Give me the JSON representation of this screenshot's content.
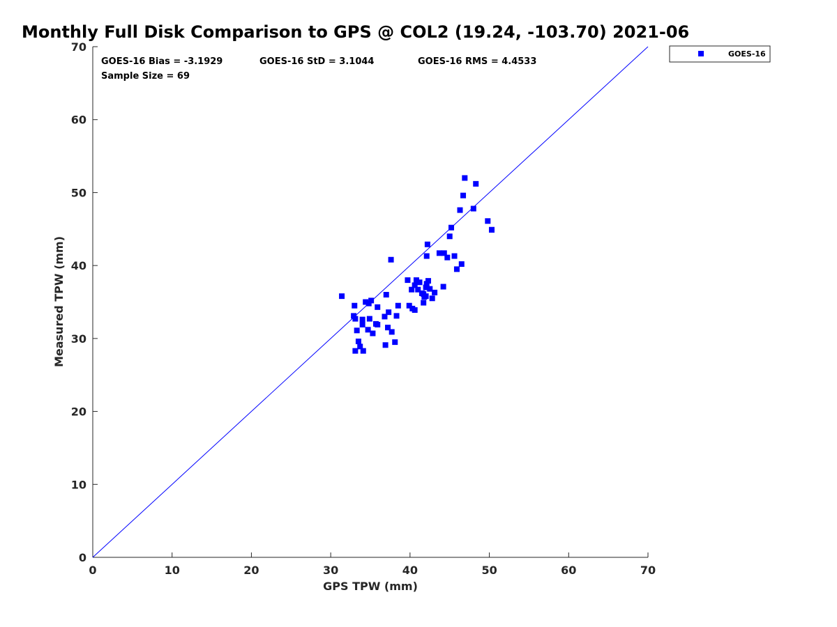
{
  "chart_data": {
    "type": "scatter",
    "title": "Monthly Full Disk Comparison to GPS @ COL2 (19.24, -103.70) 2021-06",
    "xlabel": "GPS TPW (mm)",
    "ylabel": "Measured TPW (mm)",
    "xlim": [
      0,
      70
    ],
    "ylim": [
      0,
      70
    ],
    "xticks": [
      "0",
      "10",
      "20",
      "30",
      "40",
      "50",
      "60",
      "70"
    ],
    "yticks": [
      "0",
      "10",
      "20",
      "30",
      "40",
      "50",
      "60",
      "70"
    ],
    "grid": false,
    "legend_position": "top-right, outside plot",
    "reference_line": {
      "x": [
        0,
        70
      ],
      "y": [
        0,
        70
      ],
      "color": "#0000ff"
    },
    "stats": {
      "bias": "GOES-16 Bias = -3.1929",
      "std": "GOES-16 StD = 3.1044",
      "rms": "GOES-16 RMS = 4.4533",
      "sample": "Sample Size = 69"
    },
    "series": [
      {
        "name": "GOES-16",
        "color": "#0000ff",
        "marker": "square",
        "points": [
          [
            31.4,
            35.8
          ],
          [
            33.0,
            34.5
          ],
          [
            32.9,
            33.1
          ],
          [
            33.1,
            32.7
          ],
          [
            33.3,
            31.1
          ],
          [
            33.5,
            29.6
          ],
          [
            33.7,
            28.9
          ],
          [
            33.1,
            28.3
          ],
          [
            34.1,
            28.3
          ],
          [
            34.0,
            32.6
          ],
          [
            34.0,
            31.9
          ],
          [
            34.4,
            35.0
          ],
          [
            34.8,
            34.8
          ],
          [
            35.1,
            35.2
          ],
          [
            34.9,
            32.7
          ],
          [
            34.7,
            31.2
          ],
          [
            35.3,
            30.7
          ],
          [
            35.7,
            32.0
          ],
          [
            35.9,
            34.3
          ],
          [
            35.9,
            31.9
          ],
          [
            37.0,
            36.0
          ],
          [
            37.3,
            33.6
          ],
          [
            36.8,
            33.0
          ],
          [
            37.2,
            31.5
          ],
          [
            37.7,
            30.9
          ],
          [
            36.9,
            29.1
          ],
          [
            38.1,
            29.5
          ],
          [
            38.3,
            33.1
          ],
          [
            38.5,
            34.5
          ],
          [
            37.6,
            40.8
          ],
          [
            39.7,
            38.0
          ],
          [
            39.9,
            34.5
          ],
          [
            40.2,
            36.7
          ],
          [
            40.3,
            34.1
          ],
          [
            40.6,
            33.9
          ],
          [
            40.6,
            37.3
          ],
          [
            40.8,
            38.0
          ],
          [
            41.0,
            36.7
          ],
          [
            41.2,
            37.7
          ],
          [
            41.5,
            36.2
          ],
          [
            41.7,
            34.9
          ],
          [
            41.8,
            35.7
          ],
          [
            41.7,
            36.1
          ],
          [
            42.0,
            35.8
          ],
          [
            42.0,
            37.0
          ],
          [
            42.1,
            37.5
          ],
          [
            42.3,
            37.9
          ],
          [
            42.5,
            36.8
          ],
          [
            42.8,
            35.5
          ],
          [
            43.1,
            36.3
          ],
          [
            42.1,
            41.3
          ],
          [
            42.2,
            42.9
          ],
          [
            43.7,
            41.7
          ],
          [
            44.3,
            41.7
          ],
          [
            44.7,
            41.1
          ],
          [
            44.2,
            37.1
          ],
          [
            45.0,
            44.0
          ],
          [
            45.2,
            45.2
          ],
          [
            45.6,
            41.3
          ],
          [
            45.9,
            39.5
          ],
          [
            46.5,
            40.2
          ],
          [
            46.3,
            47.6
          ],
          [
            46.7,
            49.6
          ],
          [
            46.9,
            52.0
          ],
          [
            48.0,
            47.8
          ],
          [
            48.3,
            51.2
          ],
          [
            49.8,
            46.1
          ],
          [
            50.3,
            44.9
          ],
          [
            50.3,
            44.9
          ]
        ]
      }
    ]
  }
}
